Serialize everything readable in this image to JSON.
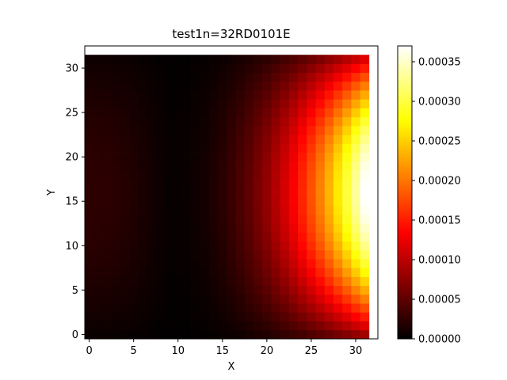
{
  "chart_data": {
    "type": "heatmap",
    "title": "test1n=32RD0101E",
    "xlabel": "X",
    "ylabel": "Y",
    "colormap": "hot",
    "grid": false,
    "x_ticks": [
      "0",
      "5",
      "10",
      "15",
      "20",
      "25",
      "30"
    ],
    "y_ticks": [
      "0",
      "5",
      "10",
      "15",
      "20",
      "25",
      "30"
    ],
    "x_range": [
      -0.5,
      32.5
    ],
    "y_range": [
      -0.5,
      32.5
    ],
    "data_x_range": [
      0,
      31
    ],
    "data_y_range": [
      0,
      31
    ],
    "colorbar": {
      "range": [
        0.0,
        0.00037
      ],
      "ticks": [
        "0.00000",
        "0.00005",
        "0.00010",
        "0.00015",
        "0.00020",
        "0.00025",
        "0.00030",
        "0.00035"
      ]
    },
    "field_description": {
      "peak_value": 0.00037,
      "peak_x": 31,
      "peak_y": 16,
      "min_x_valley": 9
    }
  }
}
